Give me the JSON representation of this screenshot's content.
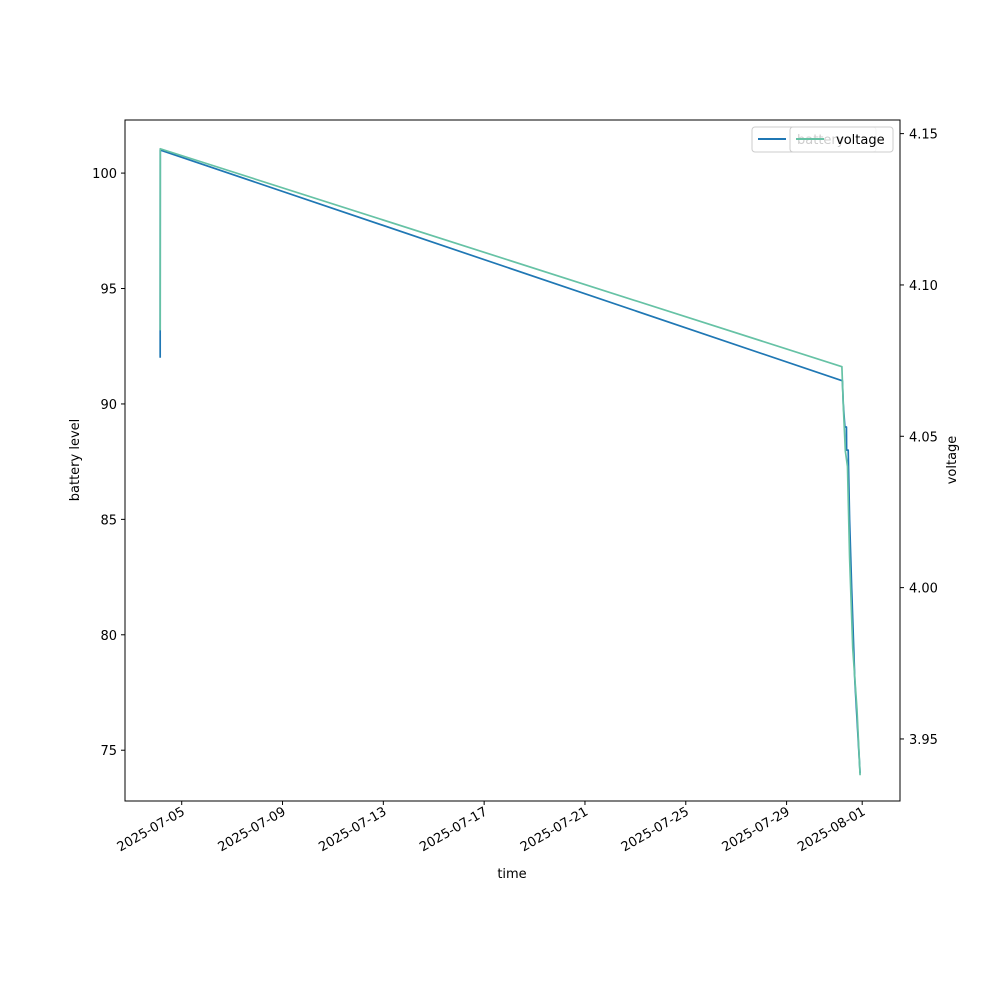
{
  "chart_data": {
    "type": "line",
    "xlabel": "time",
    "ylabel_left": "battery level",
    "ylabel_right": "voltage",
    "x_range": [
      "2025-07-02T18:00",
      "2025-08-02T12:00"
    ],
    "y_left_range": [
      72.8,
      102.3
    ],
    "y_right_range": [
      3.9295,
      4.1545
    ],
    "x_ticks": [
      "2025-07-05",
      "2025-07-09",
      "2025-07-13",
      "2025-07-17",
      "2025-07-21",
      "2025-07-25",
      "2025-07-29",
      "2025-08-01"
    ],
    "y_left_ticks": [
      75,
      80,
      85,
      90,
      95,
      100
    ],
    "y_right_ticks": [
      "3.95",
      "4.00",
      "4.05",
      "4.10",
      "4.15"
    ],
    "legend": {
      "placement": "upper right",
      "entries": [
        "battery",
        "voltage"
      ]
    },
    "series": [
      {
        "name": "battery",
        "axis": "left",
        "color": "#1f77b4",
        "points": [
          [
            "2025-07-04T03:30",
            92.0
          ],
          [
            "2025-07-04T03:30",
            93.3
          ],
          [
            "2025-07-04T03:35",
            101.0
          ],
          [
            "2025-07-31T05:10",
            91.0
          ],
          [
            "2025-07-31T06:00",
            90.0
          ],
          [
            "2025-07-31T07:30",
            89.0
          ],
          [
            "2025-07-31T09:00",
            89.0
          ],
          [
            "2025-07-31T09:10",
            88.0
          ],
          [
            "2025-07-31T10:40",
            88.0
          ],
          [
            "2025-07-31T12:00",
            85.0
          ],
          [
            "2025-07-31T14:00",
            82.0
          ],
          [
            "2025-07-31T17:00",
            78.0
          ],
          [
            "2025-07-31T22:00",
            74.0
          ]
        ]
      },
      {
        "name": "voltage",
        "axis": "right",
        "color": "#66c2a5",
        "points": [
          [
            "2025-07-04T03:30",
            4.085
          ],
          [
            "2025-07-04T03:35",
            4.145
          ],
          [
            "2025-07-31T04:40",
            4.073
          ],
          [
            "2025-07-31T06:00",
            4.06
          ],
          [
            "2025-07-31T08:00",
            4.045
          ],
          [
            "2025-07-31T10:00",
            4.04
          ],
          [
            "2025-07-31T12:00",
            4.01
          ],
          [
            "2025-07-31T15:00",
            3.98
          ],
          [
            "2025-07-31T19:00",
            3.96
          ],
          [
            "2025-07-31T22:00",
            3.938
          ]
        ]
      }
    ]
  }
}
